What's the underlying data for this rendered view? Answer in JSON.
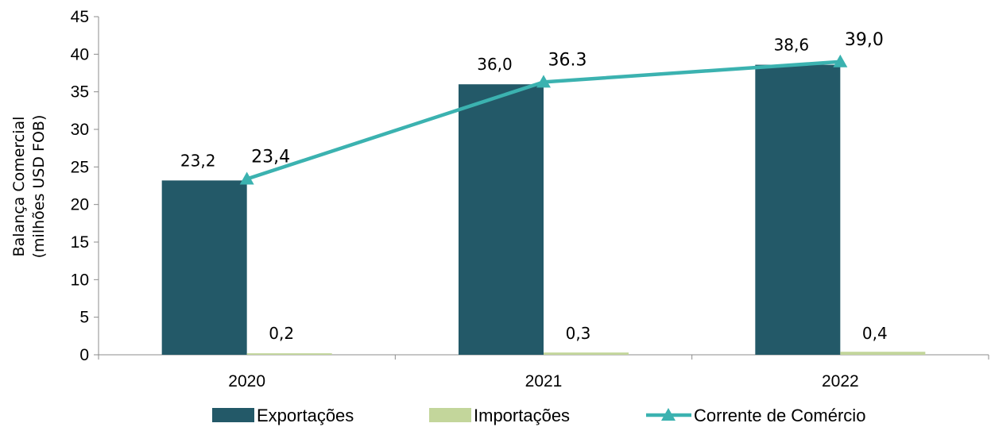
{
  "chart_data": {
    "type": "bar",
    "categories": [
      "2020",
      "2021",
      "2022"
    ],
    "series": [
      {
        "name": "Exportações",
        "kind": "bar",
        "color": "#235968",
        "values": [
          23.2,
          36.0,
          38.6
        ],
        "labels": [
          "23,2",
          "36,0",
          "38,6"
        ]
      },
      {
        "name": "Importações",
        "kind": "bar",
        "color": "#c3d69b",
        "values": [
          0.2,
          0.3,
          0.4
        ],
        "labels": [
          "0,2",
          "0,3",
          "0,4"
        ]
      },
      {
        "name": "Corrente de Comércio",
        "kind": "line",
        "marker": "triangle",
        "color": "#3bb2b0",
        "values": [
          23.4,
          36.3,
          39.0
        ],
        "labels": [
          "23,4",
          "36.3",
          "39,0"
        ]
      }
    ],
    "ylabel_line1": "Balança Comercial",
    "ylabel_line2": "(milhões USD FOB)",
    "ylim": [
      0,
      45
    ],
    "yticks": [
      0,
      5,
      10,
      15,
      20,
      25,
      30,
      35,
      40,
      45
    ],
    "grid": false,
    "legend_position": "bottom"
  }
}
